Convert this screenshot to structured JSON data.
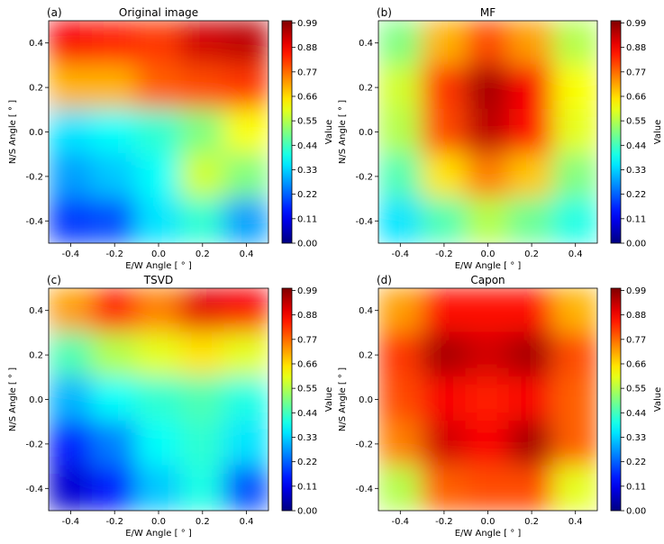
{
  "chart_data": [
    {
      "type": "heatmap",
      "panel_label": "(a)",
      "title": "Original image",
      "xlabel": "E/W Angle [ ° ]",
      "ylabel": "N/S Angle [ ° ]",
      "xlim": [
        -0.5,
        0.5
      ],
      "ylim": [
        -0.5,
        0.5
      ],
      "xticks": [
        "-0.4",
        "-0.2",
        "0.0",
        "0.2",
        "0.4"
      ],
      "yticks": [
        "-0.4",
        "-0.2",
        "0.0",
        "0.2",
        "0.4"
      ],
      "colorbar": {
        "label": "Value",
        "range": [
          0,
          1
        ],
        "colormap": "jet",
        "ticks": [
          "0.00",
          "0.11",
          "0.22",
          "0.33",
          "0.44",
          "0.55",
          "0.66",
          "0.77",
          "0.88",
          "0.99"
        ]
      },
      "grid_x": [
        -0.4,
        -0.2,
        0.0,
        0.2,
        0.4
      ],
      "grid_y": [
        0.4,
        0.2,
        0.0,
        -0.2,
        -0.4
      ],
      "values": [
        [
          0.88,
          0.85,
          0.82,
          0.92,
          0.94
        ],
        [
          0.7,
          0.7,
          0.78,
          0.8,
          0.82
        ],
        [
          0.35,
          0.38,
          0.42,
          0.5,
          0.62
        ],
        [
          0.28,
          0.32,
          0.38,
          0.58,
          0.5
        ],
        [
          0.18,
          0.2,
          0.35,
          0.42,
          0.28
        ]
      ]
    },
    {
      "type": "heatmap",
      "panel_label": "(b)",
      "title": "MF",
      "xlabel": "E/W Angle [ ° ]",
      "ylabel": "N/S Angle [ ° ]",
      "xlim": [
        -0.5,
        0.5
      ],
      "ylim": [
        -0.5,
        0.5
      ],
      "xticks": [
        "-0.4",
        "-0.2",
        "0.0",
        "0.2",
        "0.4"
      ],
      "yticks": [
        "-0.4",
        "-0.2",
        "0.0",
        "0.2",
        "0.4"
      ],
      "colorbar": {
        "label": "Value",
        "range": [
          0,
          1
        ],
        "colormap": "jet",
        "ticks": [
          "0.00",
          "0.11",
          "0.22",
          "0.33",
          "0.44",
          "0.55",
          "0.66",
          "0.77",
          "0.88",
          "0.99"
        ]
      },
      "grid_x": [
        -0.4,
        -0.2,
        0.0,
        0.2,
        0.4
      ],
      "grid_y": [
        0.4,
        0.2,
        0.0,
        -0.2,
        -0.4
      ],
      "values": [
        [
          0.5,
          0.7,
          0.8,
          0.72,
          0.55
        ],
        [
          0.58,
          0.82,
          0.96,
          0.88,
          0.62
        ],
        [
          0.55,
          0.8,
          0.94,
          0.86,
          0.6
        ],
        [
          0.45,
          0.65,
          0.75,
          0.68,
          0.5
        ],
        [
          0.35,
          0.45,
          0.55,
          0.48,
          0.4
        ]
      ]
    },
    {
      "type": "heatmap",
      "panel_label": "(c)",
      "title": "TSVD",
      "xlabel": "E/W Angle [ ° ]",
      "ylabel": "N/S Angle [ ° ]",
      "xlim": [
        -0.5,
        0.5
      ],
      "ylim": [
        -0.5,
        0.5
      ],
      "xticks": [
        "-0.4",
        "-0.2",
        "0.0",
        "0.2",
        "0.4"
      ],
      "yticks": [
        "-0.4",
        "-0.2",
        "0.0",
        "0.2",
        "0.4"
      ],
      "colorbar": {
        "label": "Value",
        "range": [
          0,
          1
        ],
        "colormap": "jet",
        "ticks": [
          "0.00",
          "0.11",
          "0.22",
          "0.33",
          "0.44",
          "0.55",
          "0.66",
          "0.77",
          "0.88",
          "0.99"
        ]
      },
      "grid_x": [
        -0.4,
        -0.2,
        0.0,
        0.2,
        0.4
      ],
      "grid_y": [
        0.4,
        0.2,
        0.0,
        -0.2,
        -0.4
      ],
      "values": [
        [
          0.72,
          0.85,
          0.75,
          0.9,
          0.88
        ],
        [
          0.45,
          0.55,
          0.6,
          0.65,
          0.6
        ],
        [
          0.3,
          0.38,
          0.42,
          0.45,
          0.4
        ],
        [
          0.15,
          0.25,
          0.38,
          0.42,
          0.35
        ],
        [
          0.08,
          0.15,
          0.32,
          0.4,
          0.2
        ]
      ]
    },
    {
      "type": "heatmap",
      "panel_label": "(d)",
      "title": "Capon",
      "xlabel": "E/W Angle [ ° ]",
      "ylabel": "N/S Angle [ ° ]",
      "xlim": [
        -0.5,
        0.5
      ],
      "ylim": [
        -0.5,
        0.5
      ],
      "xticks": [
        "-0.4",
        "-0.2",
        "0.0",
        "0.2",
        "0.4"
      ],
      "yticks": [
        "-0.4",
        "-0.2",
        "0.0",
        "0.2",
        "0.4"
      ],
      "colorbar": {
        "label": "Value",
        "range": [
          0,
          1
        ],
        "colormap": "jet",
        "ticks": [
          "0.00",
          "0.11",
          "0.22",
          "0.33",
          "0.44",
          "0.55",
          "0.66",
          "0.77",
          "0.88",
          "0.99"
        ]
      },
      "grid_x": [
        -0.4,
        -0.2,
        0.0,
        0.2,
        0.4
      ],
      "grid_y": [
        0.4,
        0.2,
        0.0,
        -0.2,
        -0.4
      ],
      "values": [
        [
          0.72,
          0.86,
          0.86,
          0.86,
          0.7
        ],
        [
          0.82,
          0.96,
          0.92,
          0.96,
          0.8
        ],
        [
          0.8,
          0.88,
          0.85,
          0.88,
          0.78
        ],
        [
          0.75,
          0.92,
          0.88,
          0.96,
          0.78
        ],
        [
          0.55,
          0.78,
          0.8,
          0.8,
          0.6
        ]
      ]
    }
  ]
}
